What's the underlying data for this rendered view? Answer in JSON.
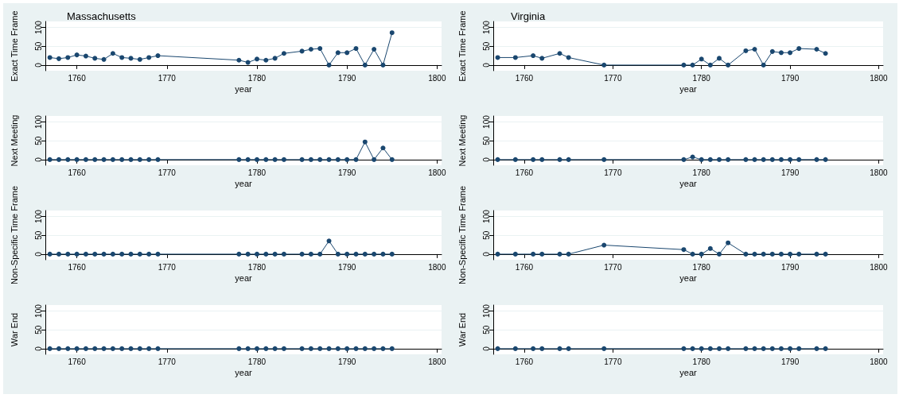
{
  "chart_data": [
    {
      "type": "line",
      "title": "Massachusetts",
      "xlabel": "year",
      "ylabel": "Exact Time Frame",
      "color": "#1a476f",
      "marker": "circle",
      "grid": "y",
      "xlim": [
        1756.5,
        1800.5
      ],
      "xticks": [
        1760,
        1770,
        1780,
        1790,
        1800
      ],
      "ylim": [
        -15,
        116
      ],
      "yticks": [
        0,
        50,
        100
      ],
      "x": [
        1757,
        1758,
        1759,
        1760,
        1761,
        1762,
        1763,
        1764,
        1765,
        1766,
        1767,
        1768,
        1769,
        1778,
        1779,
        1780,
        1781,
        1782,
        1783,
        1785,
        1786,
        1787,
        1788,
        1789,
        1790,
        1791,
        1792,
        1793,
        1794,
        1795
      ],
      "values": [
        20,
        17,
        20,
        27,
        24,
        18,
        15,
        31,
        20,
        18,
        15,
        20,
        25,
        13,
        7,
        16,
        13,
        18,
        31,
        37,
        42,
        44,
        0,
        33,
        33,
        44,
        0,
        42,
        0,
        86
      ]
    },
    {
      "type": "line",
      "title": "Virginia",
      "xlabel": "year",
      "ylabel": "Exact Time Frame",
      "color": "#1a476f",
      "marker": "circle",
      "grid": "y",
      "xlim": [
        1756.5,
        1800.5
      ],
      "xticks": [
        1760,
        1770,
        1780,
        1790,
        1800
      ],
      "ylim": [
        -15,
        116
      ],
      "yticks": [
        0,
        50,
        100
      ],
      "x": [
        1757,
        1759,
        1761,
        1762,
        1764,
        1765,
        1769,
        1778,
        1779,
        1780,
        1781,
        1782,
        1783,
        1785,
        1786,
        1787,
        1788,
        1789,
        1790,
        1791,
        1793,
        1794
      ],
      "values": [
        20,
        20,
        25,
        18,
        31,
        20,
        0,
        0,
        0,
        16,
        0,
        18,
        0,
        38,
        42,
        0,
        36,
        33,
        33,
        44,
        42,
        31
      ]
    },
    {
      "type": "line",
      "xlabel": "year",
      "ylabel": "Next Meeting",
      "color": "#1a476f",
      "marker": "circle",
      "grid": "y",
      "xlim": [
        1756.5,
        1800.5
      ],
      "xticks": [
        1760,
        1770,
        1780,
        1790,
        1800
      ],
      "ylim": [
        -15,
        116
      ],
      "yticks": [
        0,
        50,
        100
      ],
      "x": [
        1757,
        1758,
        1759,
        1760,
        1761,
        1762,
        1763,
        1764,
        1765,
        1766,
        1767,
        1768,
        1769,
        1778,
        1779,
        1780,
        1781,
        1782,
        1783,
        1785,
        1786,
        1787,
        1788,
        1789,
        1790,
        1791,
        1792,
        1793,
        1794,
        1795
      ],
      "values": [
        0,
        0,
        0,
        0,
        0,
        0,
        0,
        0,
        0,
        0,
        0,
        0,
        0,
        0,
        0,
        0,
        0,
        0,
        0,
        0,
        0,
        0,
        0,
        0,
        0,
        0,
        47,
        0,
        31,
        0
      ]
    },
    {
      "type": "line",
      "xlabel": "year",
      "ylabel": "Next Meeting",
      "color": "#1a476f",
      "marker": "circle",
      "grid": "y",
      "xlim": [
        1756.5,
        1800.5
      ],
      "xticks": [
        1760,
        1770,
        1780,
        1790,
        1800
      ],
      "ylim": [
        -15,
        116
      ],
      "yticks": [
        0,
        50,
        100
      ],
      "x": [
        1757,
        1759,
        1761,
        1762,
        1764,
        1765,
        1769,
        1778,
        1779,
        1780,
        1781,
        1782,
        1783,
        1785,
        1786,
        1787,
        1788,
        1789,
        1790,
        1791,
        1793,
        1794
      ],
      "values": [
        0,
        0,
        0,
        0,
        0,
        0,
        0,
        0,
        7,
        0,
        0,
        0,
        0,
        0,
        0,
        0,
        0,
        0,
        0,
        0,
        0,
        0
      ]
    },
    {
      "type": "line",
      "xlabel": "year",
      "ylabel": "Non-Specific Time Frame",
      "color": "#1a476f",
      "marker": "circle",
      "grid": "y",
      "xlim": [
        1756.5,
        1800.5
      ],
      "xticks": [
        1760,
        1770,
        1780,
        1790,
        1800
      ],
      "ylim": [
        -15,
        116
      ],
      "yticks": [
        0,
        50,
        100
      ],
      "x": [
        1757,
        1758,
        1759,
        1760,
        1761,
        1762,
        1763,
        1764,
        1765,
        1766,
        1767,
        1768,
        1769,
        1778,
        1779,
        1780,
        1781,
        1782,
        1783,
        1785,
        1786,
        1787,
        1788,
        1789,
        1790,
        1791,
        1792,
        1793,
        1794,
        1795
      ],
      "values": [
        0,
        0,
        0,
        0,
        0,
        0,
        0,
        0,
        0,
        0,
        0,
        0,
        0,
        0,
        0,
        0,
        0,
        0,
        0,
        0,
        0,
        0,
        35,
        0,
        0,
        0,
        0,
        0,
        0,
        0
      ]
    },
    {
      "type": "line",
      "xlabel": "year",
      "ylabel": "Non-Specific Time Frame",
      "color": "#1a476f",
      "marker": "circle",
      "grid": "y",
      "xlim": [
        1756.5,
        1800.5
      ],
      "xticks": [
        1760,
        1770,
        1780,
        1790,
        1800
      ],
      "ylim": [
        -15,
        116
      ],
      "yticks": [
        0,
        50,
        100
      ],
      "x": [
        1757,
        1759,
        1761,
        1762,
        1764,
        1765,
        1769,
        1778,
        1779,
        1780,
        1781,
        1782,
        1783,
        1785,
        1786,
        1787,
        1788,
        1789,
        1790,
        1791,
        1793,
        1794
      ],
      "values": [
        0,
        0,
        0,
        0,
        0,
        0,
        24,
        12,
        0,
        0,
        15,
        0,
        30,
        0,
        0,
        0,
        0,
        0,
        0,
        0,
        0,
        0
      ]
    },
    {
      "type": "line",
      "xlabel": "year",
      "ylabel": "War End",
      "color": "#1a476f",
      "marker": "circle",
      "grid": "y",
      "xlim": [
        1756.5,
        1800.5
      ],
      "xticks": [
        1760,
        1770,
        1780,
        1790,
        1800
      ],
      "ylim": [
        -15,
        116
      ],
      "yticks": [
        0,
        50,
        100
      ],
      "x": [
        1757,
        1758,
        1759,
        1760,
        1761,
        1762,
        1763,
        1764,
        1765,
        1766,
        1767,
        1768,
        1769,
        1778,
        1779,
        1780,
        1781,
        1782,
        1783,
        1785,
        1786,
        1787,
        1788,
        1789,
        1790,
        1791,
        1792,
        1793,
        1794,
        1795
      ],
      "values": [
        0,
        0,
        0,
        0,
        0,
        0,
        0,
        0,
        0,
        0,
        0,
        0,
        0,
        0,
        0,
        0,
        0,
        0,
        0,
        0,
        0,
        0,
        0,
        0,
        0,
        0,
        0,
        0,
        0,
        0
      ]
    },
    {
      "type": "line",
      "xlabel": "year",
      "ylabel": "War End",
      "color": "#1a476f",
      "marker": "circle",
      "grid": "y",
      "xlim": [
        1756.5,
        1800.5
      ],
      "xticks": [
        1760,
        1770,
        1780,
        1790,
        1800
      ],
      "ylim": [
        -15,
        116
      ],
      "yticks": [
        0,
        50,
        100
      ],
      "x": [
        1757,
        1759,
        1761,
        1762,
        1764,
        1765,
        1769,
        1778,
        1779,
        1780,
        1781,
        1782,
        1783,
        1785,
        1786,
        1787,
        1788,
        1789,
        1790,
        1791,
        1793,
        1794
      ],
      "values": [
        0,
        0,
        0,
        0,
        0,
        0,
        0,
        0,
        0,
        0,
        0,
        0,
        0,
        0,
        0,
        0,
        0,
        0,
        0,
        0,
        0,
        0
      ]
    }
  ]
}
